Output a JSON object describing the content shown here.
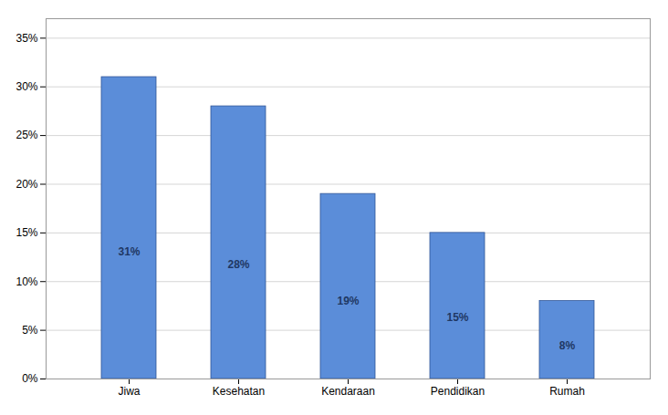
{
  "chart_data": {
    "type": "bar",
    "categories": [
      "Jiwa",
      "Kesehatan",
      "Kendaraan",
      "Pendidikan",
      "Rumah"
    ],
    "values": [
      0.31,
      0.28,
      0.19,
      0.15,
      0.08
    ],
    "value_labels": [
      "31%",
      "28%",
      "19%",
      "15%",
      "8%"
    ],
    "data_labels": true,
    "color": "#5B8DD9",
    "ylim": [
      0,
      0.37
    ],
    "yticks": [
      {
        "value": 0,
        "label": "0%"
      },
      {
        "value": 0.05,
        "label": "5%"
      },
      {
        "value": 0.1,
        "label": "10%"
      },
      {
        "value": 0.15,
        "label": "15%"
      },
      {
        "value": 0.2,
        "label": "20%"
      },
      {
        "value": 0.25,
        "label": "25%"
      },
      {
        "value": 0.3,
        "label": "30%"
      },
      {
        "value": 0.35,
        "label": "35%"
      }
    ],
    "grid": true
  }
}
